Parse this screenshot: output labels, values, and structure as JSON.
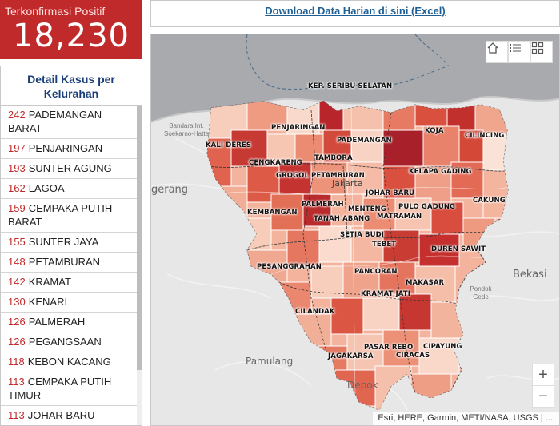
{
  "positive": {
    "label": "Terkonfirmasi Positif",
    "value": "18,230"
  },
  "detail": {
    "title": "Detail Kasus per Kelurahan",
    "items": [
      {
        "count": "242",
        "name": "PADEMANGAN BARAT"
      },
      {
        "count": "197",
        "name": "PENJARINGAN"
      },
      {
        "count": "193",
        "name": "SUNTER AGUNG"
      },
      {
        "count": "162",
        "name": "LAGOA"
      },
      {
        "count": "159",
        "name": "CEMPAKA PUTIH BARAT"
      },
      {
        "count": "155",
        "name": "SUNTER JAYA"
      },
      {
        "count": "148",
        "name": "PETAMBURAN"
      },
      {
        "count": "142",
        "name": "KRAMAT"
      },
      {
        "count": "130",
        "name": "KENARI"
      },
      {
        "count": "126",
        "name": "PALMERAH"
      },
      {
        "count": "126",
        "name": "PEGANGSAAN"
      },
      {
        "count": "118",
        "name": "KEBON KACANG"
      },
      {
        "count": "113",
        "name": "CEMPAKA PUTIH TIMUR"
      },
      {
        "count": "113",
        "name": "JOHAR BARU"
      }
    ]
  },
  "download_link": "Download Data Harian di sini (Excel)",
  "map": {
    "places": {
      "bandara": "Bandara Int. Soekarno-Hatta",
      "tangerang": "gerang",
      "bekasi": "Bekasi",
      "pamulang": "Pamulang",
      "depok": "Depok",
      "pondok_gede": "Pondok Gede",
      "jakarta": "Jakarta"
    },
    "kelurahan_labels": {
      "kep_seribu": "KEP. SERIBU SELATAN",
      "penjaringan": "PENJARINGAN",
      "koja": "KOJA",
      "cilincing": "CILINCING",
      "kalideres": "KALI DERES",
      "pademangan": "PADEMANGAN",
      "tambora": "TAMBORA",
      "cengkareng": "CENGKARENG",
      "grogol": "GROGOL PETAMBURAN",
      "kelapa_gading": "KELAPA GADING",
      "johar_baru": "JOHAR BARU",
      "palmerah": "PALMERAH",
      "cakung": "CAKUNG",
      "kembangan": "KEMBANGAN",
      "menteng": "MENTENG",
      "pulo_gadung": "PULO GADUNG",
      "tanah_abang": "TANAH ABANG",
      "matraman": "MATRAMAN",
      "setia_budi": "SETIA BUDI",
      "tebet": "TEBET",
      "duren_sawit": "DUREN SAWIT",
      "pesanggrahan": "PESANGGRAHAN",
      "pancoran": "PANCORAN",
      "makasar": "MAKASAR",
      "kramat_jati": "KRAMAT JATI",
      "cilandak": "CILANDAK",
      "pasar_rebo": "PASAR REBO",
      "cipayung": "CIPAYUNG",
      "jagakarsa": "JAGAKARSA",
      "ciracas": "CIRACAS"
    },
    "attribution": "Esri, HERE, Garmin, METI/NASA, USGS | ...",
    "zoom_in": "+",
    "zoom_out": "−",
    "icons": [
      "home-icon",
      "list-icon",
      "basemap-gallery-icon"
    ]
  },
  "colors": {
    "accent_red": "#c12a2a",
    "link_blue": "#1d5f95",
    "title_blue": "#1a3f78"
  }
}
